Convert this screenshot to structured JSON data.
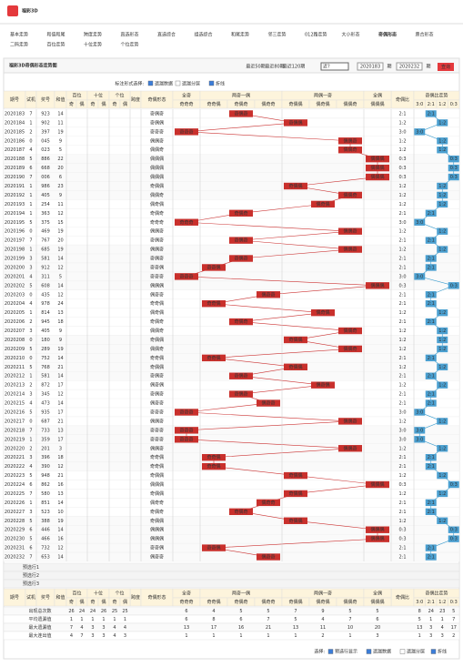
{
  "header": {
    "logo": "福彩3D",
    "nav": [
      "基本走势",
      "和值和尾",
      "跨度走势",
      "直选形态",
      "直选综合",
      "组选综合",
      "和尾走势",
      "邻三走势",
      "012路走势",
      "大小形态",
      "奇偶形态",
      "质合形态",
      "二码走势",
      "百位走势",
      "十位走势",
      "个位走势"
    ],
    "active": "奇偶形态"
  },
  "title": "福彩3D奇偶形态走势图",
  "toolbar": {
    "links": [
      "最近50期",
      "最近80期",
      "最近120期"
    ],
    "select": "近?",
    "from": "2020183",
    "sep": "期",
    "to": "2020232",
    "unit": "期",
    "button": "查询"
  },
  "controls": {
    "label": "标注形式选择:",
    "options": [
      "遗漏数据",
      "遗漏分层",
      "折线"
    ]
  },
  "table": {
    "cols": [
      "期号",
      "试机",
      "奖号",
      "和值",
      "百位",
      "十位",
      "个位",
      "跨度",
      "奇偶形态",
      "奇偶比",
      "奇偶比走势"
    ],
    "odd": "奇",
    "even": "偶",
    "groups": [
      "全奇",
      "两奇一偶",
      "两偶一奇",
      "全偶"
    ],
    "shapes": [
      "奇奇奇",
      "奇奇偶",
      "奇偶奇",
      "偶奇奇",
      "奇偶偶",
      "偶奇偶",
      "偶偶奇",
      "偶偶偶"
    ],
    "ratios": [
      "3:0",
      "2:1",
      "1:2",
      "0:3"
    ],
    "rows": [
      [
        "2020183",
        7,
        "923",
        14,
        "奇偶奇",
        "2:1"
      ],
      [
        "2020184",
        1,
        "902",
        11,
        "奇偶偶",
        "1:2"
      ],
      [
        "2020185",
        2,
        "397",
        19,
        "奇奇奇",
        "3:0"
      ],
      [
        "2020186",
        0,
        "045",
        9,
        "偶偶奇",
        "1:2"
      ],
      [
        "2020187",
        4,
        "023",
        5,
        "偶偶奇",
        "1:2"
      ],
      [
        "2020188",
        5,
        "886",
        22,
        "偶偶偶",
        "0:3"
      ],
      [
        "2020189",
        6,
        "668",
        20,
        "偶偶偶",
        "0:3"
      ],
      [
        "2020190",
        7,
        "006",
        6,
        "偶偶偶",
        "0:3"
      ],
      [
        "2020191",
        1,
        "986",
        23,
        "奇偶偶",
        "1:2"
      ],
      [
        "2020192",
        1,
        "405",
        9,
        "偶偶奇",
        "1:2"
      ],
      [
        "2020193",
        1,
        "254",
        11,
        "偶奇偶",
        "1:2"
      ],
      [
        "2020194",
        1,
        "363",
        12,
        "奇偶奇",
        "2:1"
      ],
      [
        "2020195",
        5,
        "375",
        15,
        "奇奇奇",
        "3:0"
      ],
      [
        "2020196",
        0,
        "469",
        19,
        "偶偶奇",
        "1:2"
      ],
      [
        "2020197",
        7,
        "767",
        20,
        "奇偶奇",
        "2:1"
      ],
      [
        "2020198",
        1,
        "685",
        19,
        "偶偶奇",
        "1:2"
      ],
      [
        "2020199",
        3,
        "581",
        14,
        "奇偶奇",
        "2:1"
      ],
      [
        "2020200",
        3,
        "912",
        12,
        "奇奇偶",
        "2:1"
      ],
      [
        "2020201",
        4,
        "311",
        5,
        "奇奇奇",
        "3:0"
      ],
      [
        "2020202",
        5,
        "608",
        14,
        "偶偶偶",
        "0:3"
      ],
      [
        "2020203",
        0,
        "435",
        12,
        "偶奇奇",
        "2:1"
      ],
      [
        "2020204",
        4,
        "978",
        24,
        "奇奇偶",
        "2:1"
      ],
      [
        "2020205",
        1,
        "814",
        13,
        "偶奇偶",
        "1:2"
      ],
      [
        "2020206",
        2,
        "945",
        18,
        "奇偶奇",
        "2:1"
      ],
      [
        "2020207",
        3,
        "405",
        9,
        "偶偶奇",
        "1:2"
      ],
      [
        "2020208",
        0,
        "180",
        9,
        "奇偶偶",
        "1:2"
      ],
      [
        "2020209",
        5,
        "289",
        19,
        "偶偶奇",
        "1:2"
      ],
      [
        "2020210",
        0,
        "752",
        14,
        "奇奇偶",
        "2:1"
      ],
      [
        "2020211",
        5,
        "768",
        21,
        "奇偶偶",
        "1:2"
      ],
      [
        "2020212",
        1,
        "581",
        14,
        "奇偶奇",
        "2:1"
      ],
      [
        "2020213",
        2,
        "872",
        17,
        "偶奇偶",
        "1:2"
      ],
      [
        "2020214",
        3,
        "345",
        12,
        "奇偶奇",
        "2:1"
      ],
      [
        "2020215",
        4,
        "473",
        14,
        "偶奇奇",
        "2:1"
      ],
      [
        "2020216",
        5,
        "935",
        17,
        "奇奇奇",
        "3:0"
      ],
      [
        "2020217",
        0,
        "687",
        21,
        "偶偶奇",
        "1:2"
      ],
      [
        "2020218",
        7,
        "733",
        13,
        "奇奇奇",
        "3:0"
      ],
      [
        "2020219",
        1,
        "359",
        17,
        "奇奇奇",
        "3:0"
      ],
      [
        "2020220",
        2,
        "201",
        3,
        "偶偶奇",
        "1:2"
      ],
      [
        "2020221",
        3,
        "396",
        18,
        "奇奇偶",
        "2:1"
      ],
      [
        "2020222",
        4,
        "390",
        12,
        "奇奇偶",
        "2:1"
      ],
      [
        "2020223",
        5,
        "948",
        21,
        "奇偶偶",
        "1:2"
      ],
      [
        "2020224",
        6,
        "862",
        16,
        "偶偶偶",
        "0:3"
      ],
      [
        "2020225",
        7,
        "580",
        13,
        "奇偶偶",
        "1:2"
      ],
      [
        "2020226",
        1,
        "851",
        14,
        "偶奇奇",
        "2:1"
      ],
      [
        "2020227",
        3,
        "523",
        10,
        "奇偶奇",
        "2:1"
      ],
      [
        "2020228",
        5,
        "388",
        19,
        "奇偶偶",
        "1:2"
      ],
      [
        "2020229",
        6,
        "446",
        14,
        "偶偶偶",
        "0:3"
      ],
      [
        "2020230",
        5,
        "466",
        16,
        "偶偶偶",
        "0:3"
      ],
      [
        "2020231",
        6,
        "732",
        12,
        "奇奇偶",
        "2:1"
      ],
      [
        "2020232",
        7,
        "653",
        14,
        "偶奇奇",
        "2:1"
      ]
    ],
    "preselect": [
      "预选行1",
      "预选行2",
      "预选行3"
    ],
    "stats": [
      {
        "label": "出现总次数",
        "values": [
          26,
          24,
          24,
          26,
          25,
          25,
          6,
          4,
          5,
          5,
          7,
          9,
          5,
          5,
          8,
          24,
          23,
          5
        ]
      },
      {
        "label": "平均遗漏值",
        "values": [
          1,
          1,
          1,
          1,
          1,
          1,
          6,
          8,
          6,
          7,
          5,
          4,
          7,
          6,
          5,
          1,
          1,
          7
        ]
      },
      {
        "label": "最大遗漏值",
        "values": [
          7,
          4,
          3,
          3,
          4,
          4,
          13,
          17,
          16,
          21,
          13,
          11,
          10,
          20,
          13,
          3,
          4,
          17
        ]
      },
      {
        "label": "最大连出值",
        "values": [
          4,
          7,
          3,
          3,
          4,
          3,
          1,
          1,
          1,
          1,
          1,
          2,
          1,
          3,
          1,
          3,
          3,
          2
        ]
      }
    ]
  },
  "legend": {
    "label": "选择:",
    "options": [
      "预选行显示",
      "遗漏数据",
      "遗漏分层",
      "折线"
    ]
  }
}
